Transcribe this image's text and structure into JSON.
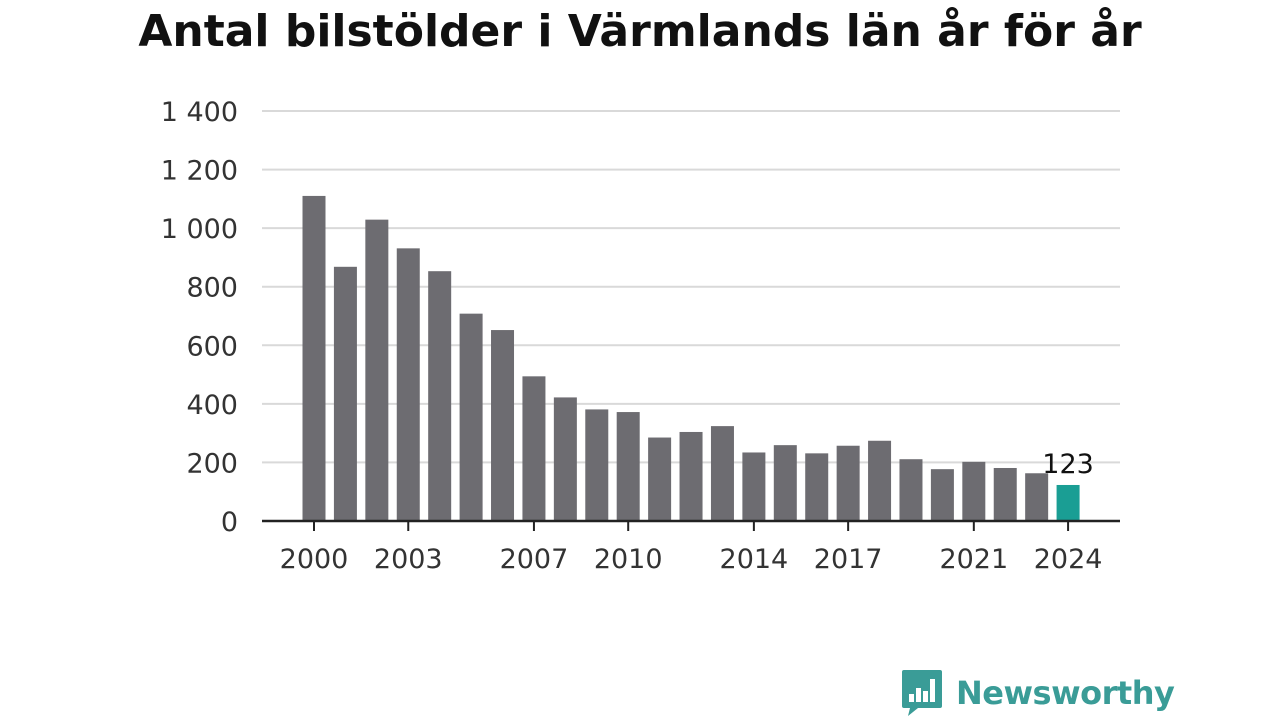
{
  "chart_data": {
    "type": "bar",
    "title": "Antal bilstölder i Värmlands län år för år",
    "categories": [
      "2000",
      "2001",
      "2002",
      "2003",
      "2004",
      "2005",
      "2006",
      "2007",
      "2008",
      "2009",
      "2010",
      "2011",
      "2012",
      "2013",
      "2014",
      "2015",
      "2016",
      "2017",
      "2018",
      "2019",
      "2020",
      "2021",
      "2022",
      "2023",
      "2024"
    ],
    "values": [
      1110,
      868,
      1029,
      931,
      853,
      708,
      652,
      494,
      422,
      381,
      372,
      285,
      304,
      324,
      234,
      259,
      231,
      257,
      274,
      211,
      177,
      202,
      181,
      163,
      123
    ],
    "x_tick_labels": [
      "2000",
      "2003",
      "2007",
      "2010",
      "2014",
      "2017",
      "2021",
      "2024"
    ],
    "y_tick_labels": [
      "0",
      "200",
      "400",
      "600",
      "800",
      "1 000",
      "1 200",
      "1 400"
    ],
    "ylim": [
      0,
      1400
    ],
    "xlabel": "",
    "ylabel": "",
    "grid": true,
    "highlight": {
      "category": "2024",
      "label": "123"
    },
    "colors": {
      "bar": "#6d6c71",
      "highlight": "#1a9e94",
      "grid": "#d9d9d9",
      "axis": "#222222",
      "tick_text": "#333333"
    }
  },
  "brand": {
    "name": "Newsworthy",
    "color": "#3a9c97"
  }
}
